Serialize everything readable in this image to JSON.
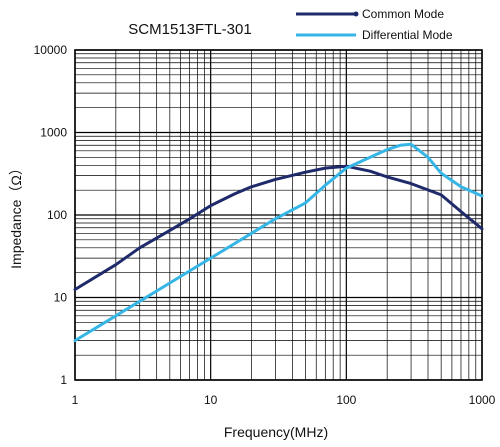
{
  "chart_data": {
    "type": "line",
    "title": "SCM1513FTL-301",
    "xlabel": "Frequency(MHz)",
    "ylabel": "Impedance（Ω）",
    "x_scale": "log",
    "y_scale": "log",
    "xlim": [
      1,
      1000
    ],
    "ylim": [
      1,
      10000
    ],
    "x_ticks": [
      "1",
      "10",
      "100",
      "1000"
    ],
    "y_ticks": [
      "1",
      "10",
      "100",
      "1000",
      "10000"
    ],
    "grid": true,
    "legend_position": "top-right",
    "series": [
      {
        "name": "Common Mode",
        "color": "#1f2a6b",
        "x": [
          1,
          2,
          3,
          5,
          7,
          10,
          15,
          20,
          30,
          50,
          70,
          100,
          150,
          200,
          300,
          500,
          700,
          1000
        ],
        "y": [
          12.5,
          25,
          40,
          65,
          90,
          130,
          180,
          220,
          270,
          330,
          370,
          390,
          340,
          290,
          240,
          175,
          110,
          68
        ]
      },
      {
        "name": "Differential Mode",
        "color": "#35b6e6",
        "x": [
          1,
          2,
          3,
          5,
          7,
          10,
          20,
          30,
          50,
          70,
          100,
          150,
          200,
          250,
          300,
          400,
          500,
          700,
          1000
        ],
        "y": [
          3,
          6,
          9,
          15,
          21,
          30,
          60,
          90,
          140,
          230,
          370,
          500,
          620,
          700,
          720,
          500,
          320,
          220,
          170
        ]
      }
    ]
  }
}
